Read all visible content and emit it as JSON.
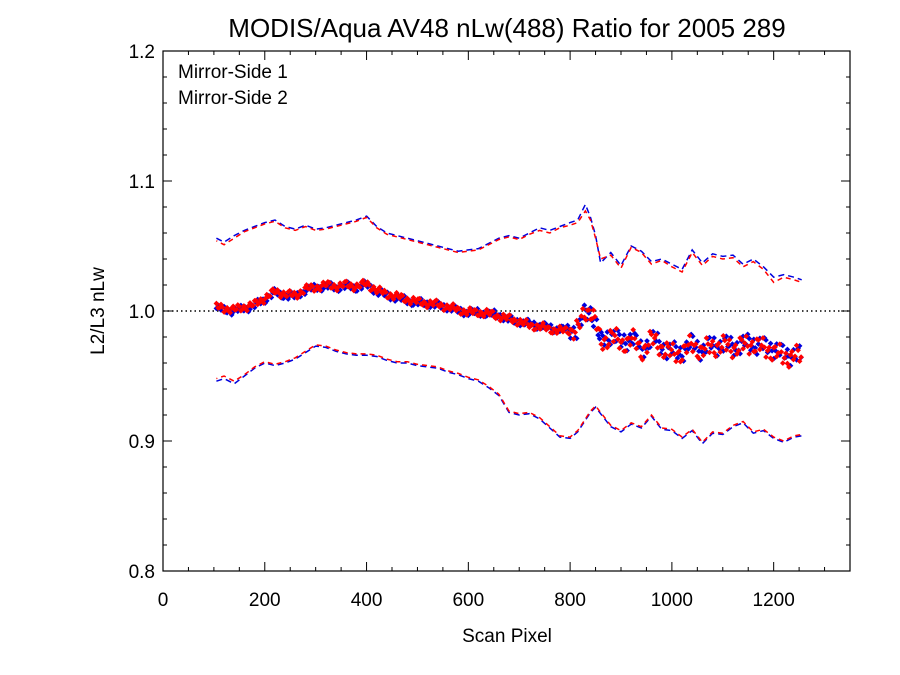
{
  "chart_data": {
    "type": "scatter",
    "title": "MODIS/Aqua AV48 nLw(488) Ratio for 2005 289",
    "xlabel": "Scan Pixel",
    "ylabel": "L2/L3 nLw",
    "xlim": [
      0,
      1350
    ],
    "ylim": [
      0.8,
      1.2
    ],
    "x_ticks": [
      0,
      200,
      400,
      600,
      800,
      1000,
      1200
    ],
    "x_tick_labels": [
      "0",
      "200",
      "400",
      "600",
      "800",
      "1000",
      "1200"
    ],
    "y_ticks": [
      0.8,
      0.9,
      1.0,
      1.1,
      1.2
    ],
    "y_tick_labels": [
      "0.8",
      "0.9",
      "1.0",
      "1.1",
      "1.2"
    ],
    "reference_line": 1.0,
    "legend": {
      "placement": "top-left"
    },
    "colors": {
      "ms1": "#0000dd",
      "ms2": "#ff0000"
    },
    "series": [
      {
        "name": "Mirror-Side 1",
        "color": "#0000dd",
        "x": [
          105,
          120,
          140,
          160,
          180,
          200,
          220,
          240,
          260,
          280,
          300,
          320,
          340,
          360,
          380,
          400,
          420,
          440,
          460,
          480,
          500,
          520,
          540,
          560,
          580,
          600,
          620,
          640,
          660,
          680,
          700,
          720,
          740,
          760,
          780,
          800,
          815,
          830,
          840,
          850,
          860,
          880,
          900,
          920,
          940,
          960,
          980,
          1000,
          1020,
          1040,
          1060,
          1080,
          1100,
          1120,
          1140,
          1160,
          1180,
          1200,
          1220,
          1240,
          1255
        ],
        "mean": [
          1.002,
          1.001,
          1.0,
          1.002,
          1.004,
          1.009,
          1.014,
          1.012,
          1.011,
          1.016,
          1.018,
          1.019,
          1.018,
          1.019,
          1.018,
          1.02,
          1.015,
          1.012,
          1.01,
          1.008,
          1.006,
          1.006,
          1.004,
          1.003,
          1.0,
          0.999,
          0.999,
          0.998,
          0.997,
          0.993,
          0.992,
          0.99,
          0.989,
          0.987,
          0.986,
          0.986,
          0.985,
          0.998,
          1.0,
          0.993,
          0.975,
          0.983,
          0.975,
          0.98,
          0.97,
          0.979,
          0.973,
          0.968,
          0.969,
          0.975,
          0.97,
          0.974,
          0.974,
          0.973,
          0.974,
          0.976,
          0.972,
          0.972,
          0.966,
          0.967,
          0.965
        ],
        "upper": [
          1.056,
          1.053,
          1.058,
          1.062,
          1.065,
          1.068,
          1.07,
          1.065,
          1.063,
          1.066,
          1.063,
          1.064,
          1.066,
          1.068,
          1.07,
          1.073,
          1.065,
          1.06,
          1.058,
          1.056,
          1.054,
          1.052,
          1.05,
          1.048,
          1.046,
          1.047,
          1.048,
          1.052,
          1.056,
          1.058,
          1.056,
          1.06,
          1.064,
          1.062,
          1.065,
          1.068,
          1.07,
          1.082,
          1.072,
          1.058,
          1.037,
          1.045,
          1.035,
          1.05,
          1.046,
          1.038,
          1.04,
          1.036,
          1.032,
          1.047,
          1.037,
          1.044,
          1.042,
          1.043,
          1.036,
          1.04,
          1.034,
          1.026,
          1.028,
          1.026,
          1.024
        ],
        "lower": [
          0.946,
          0.948,
          0.944,
          0.95,
          0.956,
          0.96,
          0.958,
          0.96,
          0.963,
          0.968,
          0.973,
          0.972,
          0.969,
          0.967,
          0.966,
          0.966,
          0.965,
          0.962,
          0.96,
          0.96,
          0.958,
          0.957,
          0.956,
          0.953,
          0.951,
          0.948,
          0.946,
          0.941,
          0.935,
          0.922,
          0.92,
          0.921,
          0.917,
          0.91,
          0.903,
          0.902,
          0.907,
          0.916,
          0.922,
          0.926,
          0.921,
          0.911,
          0.907,
          0.913,
          0.91,
          0.919,
          0.909,
          0.908,
          0.902,
          0.908,
          0.898,
          0.906,
          0.905,
          0.911,
          0.914,
          0.906,
          0.908,
          0.902,
          0.899,
          0.903,
          0.904
        ]
      },
      {
        "name": "Mirror-Side 2",
        "color": "#ff0000",
        "x": [
          105,
          120,
          140,
          160,
          180,
          200,
          220,
          240,
          260,
          280,
          300,
          320,
          340,
          360,
          380,
          400,
          420,
          440,
          460,
          480,
          500,
          520,
          540,
          560,
          580,
          600,
          620,
          640,
          660,
          680,
          700,
          720,
          740,
          760,
          780,
          800,
          815,
          830,
          840,
          850,
          860,
          880,
          900,
          920,
          940,
          960,
          980,
          1000,
          1020,
          1040,
          1060,
          1080,
          1100,
          1120,
          1140,
          1160,
          1180,
          1200,
          1220,
          1240,
          1255
        ],
        "mean": [
          1.003,
          1.002,
          1.001,
          1.003,
          1.005,
          1.01,
          1.015,
          1.013,
          1.012,
          1.017,
          1.018,
          1.02,
          1.019,
          1.02,
          1.019,
          1.021,
          1.016,
          1.013,
          1.011,
          1.009,
          1.007,
          1.006,
          1.005,
          1.003,
          1.001,
          0.999,
          0.999,
          0.998,
          0.996,
          0.994,
          0.992,
          0.989,
          0.988,
          0.986,
          0.985,
          0.985,
          0.986,
          0.999,
          1.001,
          0.992,
          0.974,
          0.982,
          0.974,
          0.979,
          0.969,
          0.978,
          0.972,
          0.967,
          0.968,
          0.974,
          0.969,
          0.973,
          0.973,
          0.972,
          0.973,
          0.975,
          0.971,
          0.969,
          0.964,
          0.966,
          0.964
        ],
        "upper": [
          1.054,
          1.051,
          1.056,
          1.061,
          1.064,
          1.067,
          1.069,
          1.064,
          1.062,
          1.065,
          1.062,
          1.063,
          1.065,
          1.067,
          1.069,
          1.072,
          1.064,
          1.059,
          1.057,
          1.055,
          1.053,
          1.051,
          1.049,
          1.047,
          1.045,
          1.046,
          1.047,
          1.051,
          1.055,
          1.057,
          1.055,
          1.059,
          1.062,
          1.06,
          1.064,
          1.066,
          1.068,
          1.077,
          1.07,
          1.056,
          1.04,
          1.043,
          1.033,
          1.049,
          1.045,
          1.036,
          1.039,
          1.034,
          1.03,
          1.045,
          1.035,
          1.042,
          1.04,
          1.041,
          1.034,
          1.038,
          1.032,
          1.022,
          1.026,
          1.024,
          1.022
        ],
        "lower": [
          0.948,
          0.95,
          0.946,
          0.951,
          0.957,
          0.961,
          0.959,
          0.961,
          0.964,
          0.969,
          0.974,
          0.973,
          0.97,
          0.968,
          0.967,
          0.967,
          0.966,
          0.963,
          0.961,
          0.961,
          0.959,
          0.958,
          0.957,
          0.954,
          0.952,
          0.949,
          0.947,
          0.942,
          0.936,
          0.923,
          0.921,
          0.922,
          0.918,
          0.911,
          0.904,
          0.903,
          0.908,
          0.917,
          0.923,
          0.927,
          0.922,
          0.912,
          0.908,
          0.914,
          0.911,
          0.92,
          0.91,
          0.909,
          0.903,
          0.909,
          0.899,
          0.907,
          0.906,
          0.912,
          0.915,
          0.907,
          0.909,
          0.903,
          0.9,
          0.904,
          0.905
        ]
      }
    ]
  }
}
